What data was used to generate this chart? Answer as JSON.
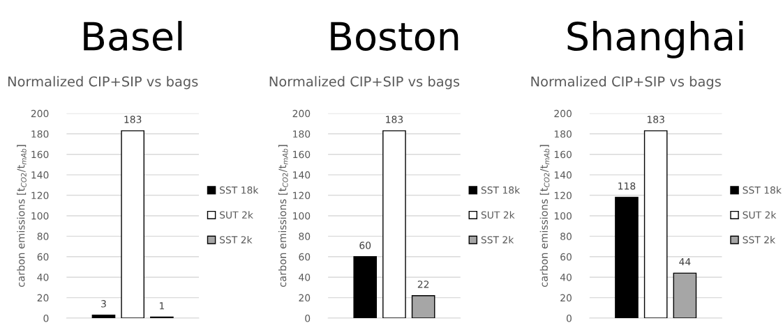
{
  "chart_data": [
    {
      "type": "bar",
      "title": "Basel",
      "subtitle": "Normalized CIP+SIP vs bags",
      "ylabel": "carbon emissions [t$_{CO2}$/t$_{mAb}$]",
      "categories": [
        null
      ],
      "series": [
        {
          "name": "SST 18k",
          "color": "#000000",
          "values": [
            3
          ]
        },
        {
          "name": "SUT 2k",
          "color": "#ffffff",
          "values": [
            183
          ]
        },
        {
          "name": "SST 2k",
          "color": "#a6a6a6",
          "values": [
            1
          ]
        }
      ],
      "ylim": [
        0,
        200
      ],
      "yticks": [
        0,
        20,
        40,
        60,
        80,
        100,
        120,
        140,
        160,
        180,
        200
      ],
      "grid": "y",
      "legend": "right",
      "data_labels": true
    },
    {
      "type": "bar",
      "title": "Boston",
      "subtitle": "Normalized CIP+SIP vs bags",
      "ylabel": "carbon emissions [t$_{CO2}$/t$_{mAb}$]",
      "categories": [
        null
      ],
      "series": [
        {
          "name": "SST 18k",
          "color": "#000000",
          "values": [
            60
          ]
        },
        {
          "name": "SUT 2k",
          "color": "#ffffff",
          "values": [
            183
          ]
        },
        {
          "name": "SST 2k",
          "color": "#a6a6a6",
          "values": [
            22
          ]
        }
      ],
      "ylim": [
        0,
        200
      ],
      "yticks": [
        0,
        20,
        40,
        60,
        80,
        100,
        120,
        140,
        160,
        180,
        200
      ],
      "grid": "y",
      "legend": "right",
      "data_labels": true
    },
    {
      "type": "bar",
      "title": "Shanghai",
      "subtitle": "Normalized CIP+SIP vs bags",
      "ylabel": "carbon emissions [t$_{CO2}$/t$_{mAb}$]",
      "categories": [
        null
      ],
      "series": [
        {
          "name": "SST 18k",
          "color": "#000000",
          "values": [
            118
          ]
        },
        {
          "name": "SUT 2k",
          "color": "#ffffff",
          "values": [
            183
          ]
        },
        {
          "name": "SST 2k",
          "color": "#a6a6a6",
          "values": [
            44
          ]
        }
      ],
      "ylim": [
        0,
        200
      ],
      "yticks": [
        0,
        20,
        40,
        60,
        80,
        100,
        120,
        140,
        160,
        180,
        200
      ],
      "grid": "y",
      "legend": "right",
      "data_labels": true
    }
  ]
}
